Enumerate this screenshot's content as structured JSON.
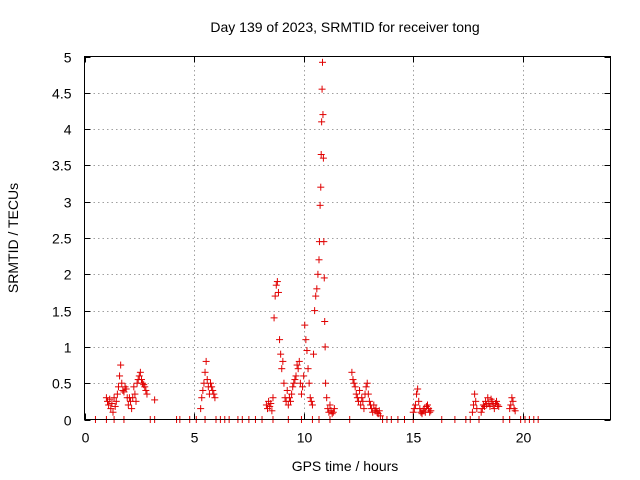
{
  "chart_data": {
    "type": "scatter",
    "title": "Day 139 of 2023, SRMTID for receiver tong",
    "xlabel": "GPS time / hours",
    "ylabel": "SRMTID / TECUs",
    "xlim": [
      0,
      24
    ],
    "ylim": [
      0,
      5
    ],
    "xticks": [
      0,
      5,
      10,
      15,
      20
    ],
    "xtick_labels": [
      "0",
      "5",
      "10",
      "15",
      "20"
    ],
    "yticks": [
      0,
      0.5,
      1,
      1.5,
      2,
      2.5,
      3,
      3.5,
      4,
      4.5,
      5
    ],
    "ytick_labels": [
      "0",
      "0.5",
      "1",
      "1.5",
      "2",
      "2.5",
      "3",
      "3.5",
      "4",
      "4.5",
      "5"
    ],
    "grid": true,
    "marker": "+",
    "color": "#e00000",
    "series": [
      {
        "name": "SRMTID",
        "points": [
          [
            0.5,
            0
          ],
          [
            1.0,
            0
          ],
          [
            1.35,
            0
          ],
          [
            1.8,
            0
          ],
          [
            3.0,
            0
          ],
          [
            3.2,
            0
          ],
          [
            4.2,
            0
          ],
          [
            4.35,
            0
          ],
          [
            4.8,
            0
          ],
          [
            5.1,
            0
          ],
          [
            5.5,
            0
          ],
          [
            6.0,
            0
          ],
          [
            6.2,
            0
          ],
          [
            6.4,
            0
          ],
          [
            6.6,
            0
          ],
          [
            7.0,
            0
          ],
          [
            7.2,
            0
          ],
          [
            7.5,
            0
          ],
          [
            7.8,
            0
          ],
          [
            8.1,
            0
          ],
          [
            8.6,
            0
          ],
          [
            9.3,
            0
          ],
          [
            9.9,
            0
          ],
          [
            10.4,
            0
          ],
          [
            10.7,
            0
          ],
          [
            11.2,
            0
          ],
          [
            12.1,
            0
          ],
          [
            13.6,
            0
          ],
          [
            13.8,
            0
          ],
          [
            14.0,
            0
          ],
          [
            14.3,
            0
          ],
          [
            14.6,
            0
          ],
          [
            15.0,
            0
          ],
          [
            16.3,
            0
          ],
          [
            16.9,
            0
          ],
          [
            17.4,
            0
          ],
          [
            17.6,
            0
          ],
          [
            18.0,
            0
          ],
          [
            19.1,
            0
          ],
          [
            19.4,
            0
          ],
          [
            19.9,
            0
          ],
          [
            20.1,
            0
          ],
          [
            20.3,
            0
          ],
          [
            20.5,
            0
          ],
          [
            20.7,
            0
          ],
          [
            1.0,
            0.3
          ],
          [
            1.05,
            0.25
          ],
          [
            1.1,
            0.2
          ],
          [
            1.15,
            0.28
          ],
          [
            1.2,
            0.15
          ],
          [
            1.25,
            0.22
          ],
          [
            1.3,
            0.1
          ],
          [
            1.35,
            0.3
          ],
          [
            1.4,
            0.18
          ],
          [
            1.45,
            0.25
          ],
          [
            1.5,
            0.35
          ],
          [
            1.55,
            0.45
          ],
          [
            1.6,
            0.6
          ],
          [
            1.65,
            0.75
          ],
          [
            1.7,
            0.5
          ],
          [
            1.75,
            0.4
          ],
          [
            1.8,
            0.38
          ],
          [
            1.85,
            0.45
          ],
          [
            1.9,
            0.42
          ],
          [
            1.95,
            0.3
          ],
          [
            2.0,
            0.2
          ],
          [
            2.05,
            0.3
          ],
          [
            2.1,
            0.25
          ],
          [
            2.15,
            0.15
          ],
          [
            2.2,
            0.3
          ],
          [
            2.25,
            0.45
          ],
          [
            2.3,
            0.35
          ],
          [
            2.35,
            0.25
          ],
          [
            2.4,
            0.5
          ],
          [
            2.45,
            0.55
          ],
          [
            2.5,
            0.6
          ],
          [
            2.55,
            0.65
          ],
          [
            2.6,
            0.55
          ],
          [
            2.65,
            0.5
          ],
          [
            2.7,
            0.48
          ],
          [
            2.75,
            0.45
          ],
          [
            2.8,
            0.4
          ],
          [
            2.85,
            0.35
          ],
          [
            3.2,
            0.27
          ],
          [
            5.3,
            0.15
          ],
          [
            5.35,
            0.3
          ],
          [
            5.4,
            0.4
          ],
          [
            5.45,
            0.5
          ],
          [
            5.5,
            0.65
          ],
          [
            5.55,
            0.8
          ],
          [
            5.6,
            0.55
          ],
          [
            5.65,
            0.45
          ],
          [
            5.7,
            0.35
          ],
          [
            5.75,
            0.5
          ],
          [
            5.8,
            0.45
          ],
          [
            5.85,
            0.4
          ],
          [
            5.9,
            0.35
          ],
          [
            5.95,
            0.3
          ],
          [
            8.3,
            0.2
          ],
          [
            8.35,
            0.15
          ],
          [
            8.4,
            0.25
          ],
          [
            8.45,
            0.18
          ],
          [
            8.5,
            0.22
          ],
          [
            8.55,
            0.12
          ],
          [
            8.6,
            0.3
          ],
          [
            8.65,
            1.4
          ],
          [
            8.7,
            1.7
          ],
          [
            8.75,
            1.85
          ],
          [
            8.8,
            1.9
          ],
          [
            8.85,
            1.75
          ],
          [
            8.9,
            1.1
          ],
          [
            8.95,
            0.9
          ],
          [
            9.0,
            0.7
          ],
          [
            9.05,
            0.8
          ],
          [
            9.1,
            0.5
          ],
          [
            9.15,
            0.3
          ],
          [
            9.2,
            0.25
          ],
          [
            9.25,
            0.4
          ],
          [
            9.3,
            0.2
          ],
          [
            9.35,
            0.3
          ],
          [
            9.4,
            0.25
          ],
          [
            9.45,
            0.35
          ],
          [
            9.5,
            0.45
          ],
          [
            9.55,
            0.5
          ],
          [
            9.6,
            0.55
          ],
          [
            9.65,
            0.6
          ],
          [
            9.7,
            0.75
          ],
          [
            9.75,
            0.7
          ],
          [
            9.8,
            0.8
          ],
          [
            9.85,
            0.5
          ],
          [
            9.9,
            0.35
          ],
          [
            9.95,
            0.45
          ],
          [
            10.0,
            0.6
          ],
          [
            10.05,
            1.3
          ],
          [
            10.1,
            1.1
          ],
          [
            10.15,
            0.95
          ],
          [
            10.2,
            0.7
          ],
          [
            10.25,
            0.5
          ],
          [
            10.3,
            0.3
          ],
          [
            10.35,
            0.25
          ],
          [
            10.4,
            0.2
          ],
          [
            10.45,
            0.9
          ],
          [
            10.5,
            1.5
          ],
          [
            10.55,
            1.7
          ],
          [
            10.6,
            1.8
          ],
          [
            10.65,
            2.0
          ],
          [
            10.7,
            2.2
          ],
          [
            10.72,
            2.45
          ],
          [
            10.75,
            2.95
          ],
          [
            10.78,
            3.2
          ],
          [
            10.8,
            3.65
          ],
          [
            10.82,
            4.1
          ],
          [
            10.84,
            4.55
          ],
          [
            10.86,
            4.92
          ],
          [
            10.88,
            4.2
          ],
          [
            10.9,
            3.6
          ],
          [
            10.92,
            2.45
          ],
          [
            10.94,
            1.95
          ],
          [
            10.96,
            1.35
          ],
          [
            10.98,
            1.0
          ],
          [
            11.0,
            0.5
          ],
          [
            11.05,
            0.3
          ],
          [
            11.1,
            0.15
          ],
          [
            11.15,
            0.1
          ],
          [
            11.2,
            0.2
          ],
          [
            11.25,
            0.12
          ],
          [
            11.3,
            0.08
          ],
          [
            11.35,
            0.1
          ],
          [
            11.4,
            0.15
          ],
          [
            12.2,
            0.65
          ],
          [
            12.25,
            0.55
          ],
          [
            12.3,
            0.5
          ],
          [
            12.35,
            0.45
          ],
          [
            12.4,
            0.35
          ],
          [
            12.45,
            0.3
          ],
          [
            12.5,
            0.25
          ],
          [
            12.55,
            0.4
          ],
          [
            12.6,
            0.2
          ],
          [
            12.65,
            0.3
          ],
          [
            12.7,
            0.25
          ],
          [
            12.75,
            0.15
          ],
          [
            12.8,
            0.35
          ],
          [
            12.85,
            0.45
          ],
          [
            12.9,
            0.5
          ],
          [
            12.95,
            0.35
          ],
          [
            13.0,
            0.25
          ],
          [
            13.05,
            0.2
          ],
          [
            13.1,
            0.15
          ],
          [
            13.15,
            0.1
          ],
          [
            13.2,
            0.2
          ],
          [
            13.25,
            0.12
          ],
          [
            13.3,
            0.15
          ],
          [
            13.35,
            0.1
          ],
          [
            13.4,
            0.08
          ],
          [
            13.45,
            0.12
          ],
          [
            13.5,
            0.05
          ],
          [
            15.0,
            0.1
          ],
          [
            15.05,
            0.15
          ],
          [
            15.1,
            0.2
          ],
          [
            15.15,
            0.35
          ],
          [
            15.2,
            0.42
          ],
          [
            15.25,
            0.25
          ],
          [
            15.3,
            0.15
          ],
          [
            15.35,
            0.1
          ],
          [
            15.4,
            0.08
          ],
          [
            15.45,
            0.12
          ],
          [
            15.5,
            0.15
          ],
          [
            15.55,
            0.1
          ],
          [
            15.6,
            0.18
          ],
          [
            15.65,
            0.2
          ],
          [
            15.7,
            0.15
          ],
          [
            15.75,
            0.1
          ],
          [
            15.8,
            0.12
          ],
          [
            17.7,
            0.1
          ],
          [
            17.75,
            0.2
          ],
          [
            17.8,
            0.35
          ],
          [
            17.85,
            0.25
          ],
          [
            17.9,
            0.15
          ],
          [
            18.1,
            0.1
          ],
          [
            18.15,
            0.15
          ],
          [
            18.2,
            0.2
          ],
          [
            18.25,
            0.18
          ],
          [
            18.3,
            0.25
          ],
          [
            18.35,
            0.2
          ],
          [
            18.4,
            0.3
          ],
          [
            18.45,
            0.22
          ],
          [
            18.5,
            0.18
          ],
          [
            18.55,
            0.28
          ],
          [
            18.6,
            0.25
          ],
          [
            18.65,
            0.2
          ],
          [
            18.7,
            0.15
          ],
          [
            18.75,
            0.22
          ],
          [
            18.8,
            0.25
          ],
          [
            18.85,
            0.2
          ],
          [
            18.9,
            0.18
          ],
          [
            19.4,
            0.15
          ],
          [
            19.45,
            0.2
          ],
          [
            19.5,
            0.3
          ],
          [
            19.55,
            0.25
          ],
          [
            19.6,
            0.15
          ],
          [
            19.65,
            0.12
          ]
        ]
      }
    ]
  }
}
